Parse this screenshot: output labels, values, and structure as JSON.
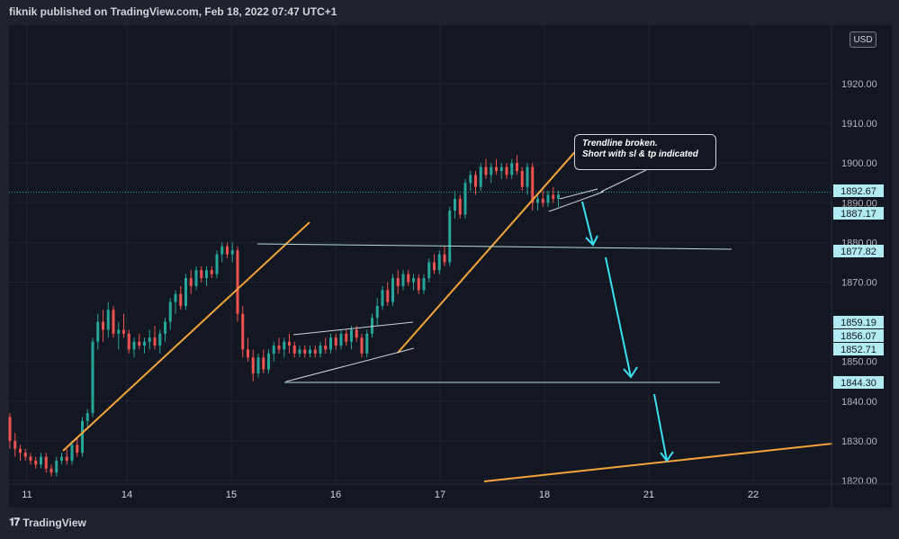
{
  "header": {
    "published": "fiknik published on TradingView.com, Feb 18, 2022 07:47 UTC+1"
  },
  "footer": {
    "brand": "TradingView",
    "logo_icon": "tradingview-logo-icon"
  },
  "currency_badge": "USD",
  "annotation": {
    "line1": "Trendline broken.",
    "line2": "Short with sl & tp indicated"
  },
  "colors": {
    "background": "#131722",
    "bull": "#26a69a",
    "bear": "#ef5350",
    "trendline": "#f5a43b",
    "horizontal_line": "#b2dfdb",
    "arrow": "#3ae0f0",
    "price_label_bg": "#b2ebf2"
  },
  "chart_data": {
    "type": "candlestick",
    "title": "",
    "xlabel": "",
    "ylabel": "",
    "ylim": [
      1818,
      1944
    ],
    "x_ticks": [
      "11",
      "14",
      "15",
      "16",
      "17",
      "18",
      "21",
      "22"
    ],
    "y_ticks": [
      "1920.00",
      "1910.00",
      "1900.00",
      "1890.00",
      "1880.00",
      "1870.00",
      "1850.00",
      "1840.00",
      "1830.00",
      "1820.00"
    ],
    "price_labels": [
      "1892.67",
      "1887.17",
      "1877.82",
      "1859.19",
      "1856.07",
      "1852.71",
      "1844.30"
    ],
    "current_price": 1892.67,
    "horizontal_levels": [
      1878.6,
      1844.3
    ],
    "grid": true,
    "candles": [
      [
        1836,
        1837,
        1828,
        1830
      ],
      [
        1830,
        1832,
        1826,
        1828
      ],
      [
        1828,
        1829,
        1825,
        1827
      ],
      [
        1827,
        1828,
        1825,
        1826
      ],
      [
        1826,
        1827,
        1824,
        1825
      ],
      [
        1825,
        1826,
        1823,
        1824
      ],
      [
        1824,
        1827,
        1823,
        1826
      ],
      [
        1826,
        1827,
        1822,
        1823
      ],
      [
        1823,
        1824,
        1821,
        1822
      ],
      [
        1822,
        1826,
        1821,
        1825
      ],
      [
        1825,
        1827,
        1824,
        1826
      ],
      [
        1826,
        1828,
        1824,
        1825
      ],
      [
        1825,
        1830,
        1824,
        1829
      ],
      [
        1829,
        1831,
        1826,
        1827
      ],
      [
        1827,
        1836,
        1826,
        1835
      ],
      [
        1835,
        1838,
        1833,
        1837
      ],
      [
        1837,
        1856,
        1836,
        1855
      ],
      [
        1855,
        1862,
        1853,
        1860
      ],
      [
        1860,
        1863,
        1855,
        1858
      ],
      [
        1858,
        1865,
        1856,
        1863
      ],
      [
        1863,
        1864,
        1856,
        1857
      ],
      [
        1857,
        1860,
        1853,
        1858
      ],
      [
        1858,
        1862,
        1856,
        1857
      ],
      [
        1857,
        1858,
        1852,
        1853
      ],
      [
        1853,
        1856,
        1851,
        1855
      ],
      [
        1855,
        1857,
        1853,
        1854
      ],
      [
        1854,
        1856,
        1852,
        1855
      ],
      [
        1855,
        1858,
        1853,
        1856
      ],
      [
        1856,
        1859,
        1853,
        1854
      ],
      [
        1854,
        1858,
        1852,
        1857
      ],
      [
        1857,
        1861,
        1855,
        1860
      ],
      [
        1860,
        1866,
        1858,
        1865
      ],
      [
        1865,
        1868,
        1862,
        1867
      ],
      [
        1867,
        1869,
        1863,
        1864
      ],
      [
        1864,
        1872,
        1863,
        1871
      ],
      [
        1871,
        1873,
        1867,
        1869
      ],
      [
        1869,
        1874,
        1868,
        1873
      ],
      [
        1873,
        1874,
        1870,
        1871
      ],
      [
        1871,
        1874,
        1869,
        1873
      ],
      [
        1873,
        1874,
        1871,
        1872
      ],
      [
        1872,
        1878,
        1871,
        1877
      ],
      [
        1877,
        1880,
        1875,
        1879
      ],
      [
        1879,
        1880,
        1876,
        1877
      ],
      [
        1877,
        1880,
        1875,
        1878
      ],
      [
        1878,
        1879,
        1860,
        1862
      ],
      [
        1862,
        1864,
        1851,
        1853
      ],
      [
        1853,
        1856,
        1850,
        1851
      ],
      [
        1851,
        1853,
        1845,
        1847
      ],
      [
        1847,
        1852,
        1846,
        1851
      ],
      [
        1851,
        1853,
        1847,
        1848
      ],
      [
        1848,
        1853,
        1847,
        1852
      ],
      [
        1852,
        1855,
        1850,
        1854
      ],
      [
        1854,
        1856,
        1852,
        1853
      ],
      [
        1853,
        1856,
        1851,
        1855
      ],
      [
        1855,
        1857,
        1852,
        1854
      ],
      [
        1854,
        1855,
        1851,
        1852
      ],
      [
        1852,
        1854,
        1851,
        1853
      ],
      [
        1853,
        1854,
        1851,
        1852
      ],
      [
        1852,
        1854,
        1851,
        1853
      ],
      [
        1853,
        1854,
        1851,
        1852
      ],
      [
        1852,
        1855,
        1851,
        1854
      ],
      [
        1854,
        1856,
        1852,
        1853
      ],
      [
        1853,
        1857,
        1852,
        1856
      ],
      [
        1856,
        1857,
        1853,
        1854
      ],
      [
        1854,
        1858,
        1853,
        1857
      ],
      [
        1857,
        1858,
        1854,
        1855
      ],
      [
        1855,
        1859,
        1853,
        1858
      ],
      [
        1858,
        1859,
        1855,
        1856
      ],
      [
        1856,
        1857,
        1851,
        1852
      ],
      [
        1852,
        1858,
        1851,
        1857
      ],
      [
        1857,
        1862,
        1856,
        1861
      ],
      [
        1861,
        1866,
        1859,
        1864
      ],
      [
        1864,
        1869,
        1863,
        1868
      ],
      [
        1868,
        1870,
        1864,
        1865
      ],
      [
        1865,
        1872,
        1864,
        1871
      ],
      [
        1871,
        1873,
        1867,
        1869
      ],
      [
        1869,
        1873,
        1868,
        1872
      ],
      [
        1872,
        1873,
        1869,
        1870
      ],
      [
        1870,
        1872,
        1868,
        1871
      ],
      [
        1871,
        1872,
        1867,
        1868
      ],
      [
        1868,
        1872,
        1867,
        1871
      ],
      [
        1871,
        1876,
        1870,
        1875
      ],
      [
        1875,
        1877,
        1872,
        1873
      ],
      [
        1873,
        1878,
        1872,
        1877
      ],
      [
        1877,
        1879,
        1874,
        1875
      ],
      [
        1875,
        1889,
        1874,
        1888
      ],
      [
        1888,
        1893,
        1886,
        1891
      ],
      [
        1891,
        1892,
        1886,
        1887
      ],
      [
        1887,
        1896,
        1886,
        1895
      ],
      [
        1895,
        1898,
        1893,
        1897
      ],
      [
        1897,
        1898,
        1892,
        1894
      ],
      [
        1894,
        1900,
        1893,
        1899
      ],
      [
        1899,
        1901,
        1896,
        1897
      ],
      [
        1897,
        1900,
        1895,
        1899
      ],
      [
        1899,
        1901,
        1897,
        1898
      ],
      [
        1898,
        1900,
        1896,
        1899
      ],
      [
        1899,
        1900,
        1896,
        1897
      ],
      [
        1897,
        1901,
        1896,
        1900
      ],
      [
        1900,
        1902,
        1897,
        1898
      ],
      [
        1898,
        1899,
        1893,
        1894
      ],
      [
        1894,
        1900,
        1892,
        1899
      ],
      [
        1899,
        1900,
        1888,
        1890
      ],
      [
        1890,
        1892,
        1888,
        1891
      ],
      [
        1891,
        1893,
        1889,
        1890
      ],
      [
        1890,
        1893,
        1889,
        1892
      ],
      [
        1892,
        1894,
        1890,
        1891
      ],
      [
        1891,
        1893,
        1889,
        1892
      ]
    ]
  }
}
